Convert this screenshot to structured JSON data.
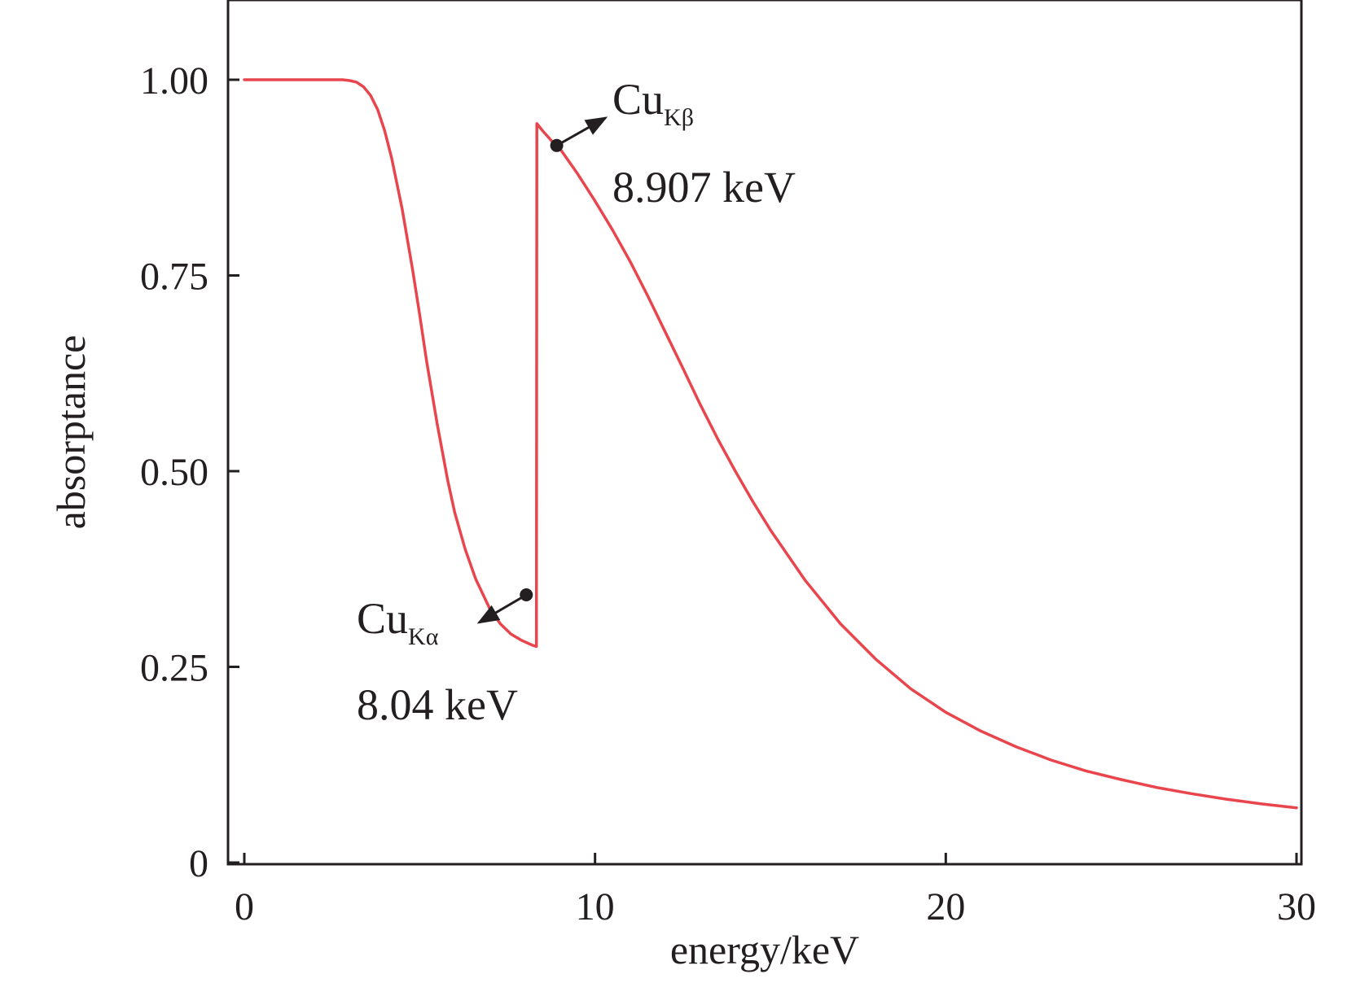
{
  "chart_data": {
    "type": "line",
    "title": "",
    "xlabel": "energy/keV",
    "ylabel": "absorptance",
    "xlim": [
      -0.5,
      30
    ],
    "ylim": [
      -0.005,
      1.1
    ],
    "xticks": [
      0,
      10,
      20,
      30
    ],
    "xtick_labels": [
      "0",
      "10",
      "20",
      "30"
    ],
    "yticks": [
      0,
      0.25,
      0.5,
      0.75,
      1.0
    ],
    "ytick_labels": [
      "0",
      "0.25",
      "0.50",
      "0.75",
      "1.00"
    ],
    "grid": false,
    "legend": "none",
    "series": [
      {
        "color": "#e8454c",
        "x": [
          0,
          1,
          2,
          2.8,
          3.0,
          3.2,
          3.4,
          3.6,
          3.8,
          4.0,
          4.2,
          4.5,
          4.8,
          5.0,
          5.2,
          5.5,
          5.8,
          6.0,
          6.3,
          6.6,
          7.0,
          7.3,
          7.6,
          7.9,
          8.2,
          8.33,
          8.34,
          8.5,
          8.8,
          9.0,
          9.5,
          10.0,
          10.5,
          11.0,
          11.5,
          12.0,
          12.5,
          13.0,
          13.5,
          14.0,
          14.5,
          15.0,
          16.0,
          17.0,
          18.0,
          19.0,
          20.0,
          21.0,
          22.0,
          23.0,
          24.0,
          25.0,
          26.0,
          27.0,
          28.0,
          29.0,
          30.0
        ],
        "y": [
          1.0,
          1.0,
          1.0,
          1.0,
          0.999,
          0.997,
          0.991,
          0.98,
          0.962,
          0.935,
          0.9,
          0.835,
          0.757,
          0.7,
          0.64,
          0.56,
          0.488,
          0.447,
          0.4,
          0.362,
          0.324,
          0.305,
          0.292,
          0.284,
          0.278,
          0.276,
          0.944,
          0.935,
          0.92,
          0.912,
          0.88,
          0.845,
          0.808,
          0.768,
          0.724,
          0.678,
          0.632,
          0.585,
          0.541,
          0.5,
          0.461,
          0.425,
          0.36,
          0.305,
          0.26,
          0.222,
          0.192,
          0.168,
          0.148,
          0.131,
          0.117,
          0.106,
          0.096,
          0.088,
          0.081,
          0.075,
          0.07
        ]
      }
    ],
    "annotations": [
      {
        "x": 8.04,
        "y": 0.342,
        "label": "Cu",
        "sub": "Kα",
        "value": "8.04 keV"
      },
      {
        "x": 8.907,
        "y": 0.916,
        "label": "Cu",
        "sub": "Kβ",
        "value": "8.907 keV"
      }
    ],
    "line_color": "#e8454c",
    "axis_color": "#231f20"
  }
}
